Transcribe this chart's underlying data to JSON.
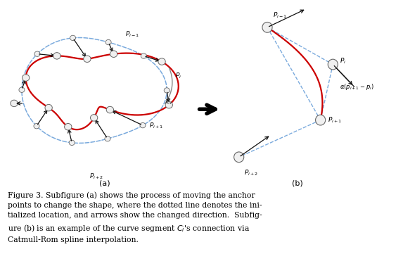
{
  "figure_width": 5.73,
  "figure_height": 3.61,
  "dpi": 100,
  "bg_color": "#ffffff",
  "label_a": "(a)",
  "label_b": "(b)",
  "red_color": "#cc0000",
  "blue_dashed_color": "#7aaadd",
  "gray_color": "#888888",
  "circle_face": "#f0f0f0",
  "circle_edge": "#666666",
  "arrow_color": "#111111",
  "caption": "Figure 3. Subfigure (a) shows the process of moving the anchor\npoints to change the shape, where the dotted line denotes the ini-\ntialized location, and arrows show the changed direction.  Subfig-\nure (b) is an example of the curve segment $C_i$’s connection via\nCatmull-Rom spline interpolation."
}
